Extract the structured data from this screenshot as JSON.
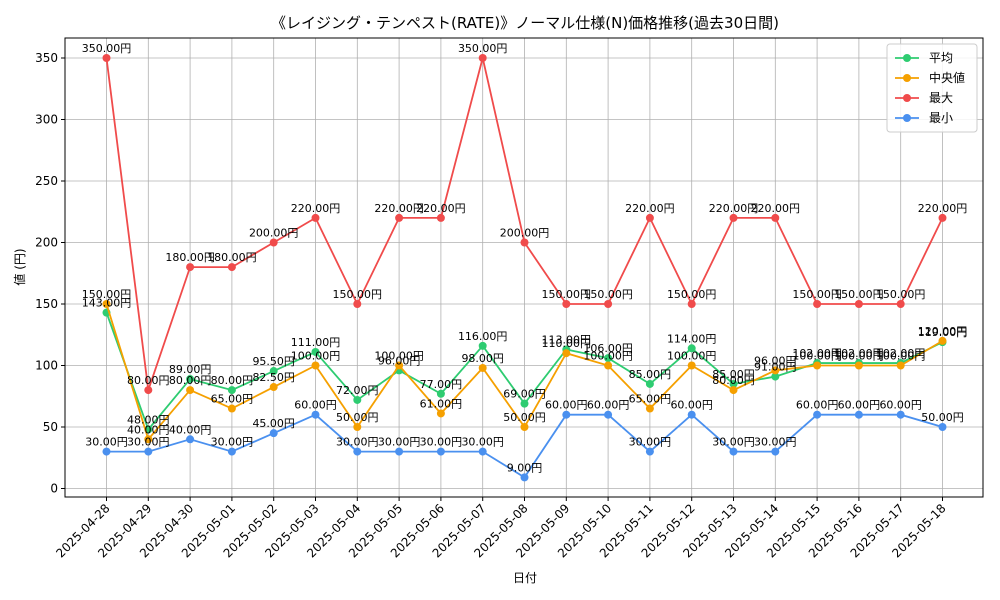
{
  "chart_data": {
    "type": "line",
    "title": "《レイジング・テンペスト(RATE)》ノーマル仕様(N)価格推移(過去30日間)",
    "xlabel": "日付",
    "ylabel": "値 (円)",
    "ylim": [
      0,
      360
    ],
    "yticks": [
      0,
      50,
      100,
      150,
      200,
      250,
      300,
      350
    ],
    "grid": true,
    "legend_position": "top-right",
    "label_suffix": "円",
    "categories": [
      "2025-04-28",
      "2025-04-29",
      "2025-04-30",
      "2025-05-01",
      "2025-05-02",
      "2025-05-03",
      "2025-05-04",
      "2025-05-05",
      "2025-05-06",
      "2025-05-07",
      "2025-05-08",
      "2025-05-09",
      "2025-05-10",
      "2025-05-11",
      "2025-05-12",
      "2025-05-13",
      "2025-05-14",
      "2025-05-15",
      "2025-05-16",
      "2025-05-17",
      "2025-05-18"
    ],
    "series": [
      {
        "name": "平均",
        "color": "#2ecc71",
        "values": [
          143,
          48,
          89,
          80,
          95.5,
          111,
          72,
          96,
          77,
          116,
          69,
          113,
          106,
          85,
          114,
          85,
          91,
          102,
          102,
          102,
          119
        ]
      },
      {
        "name": "中央値",
        "color": "#f5a000",
        "values": [
          150,
          40,
          80,
          65,
          82.5,
          100,
          50,
          100,
          61,
          98,
          50,
          110,
          100,
          65,
          100,
          80,
          96,
          100,
          100,
          100,
          120
        ]
      },
      {
        "name": "最大",
        "color": "#f04b4b",
        "values": [
          350,
          80,
          180,
          180,
          200,
          220,
          150,
          220,
          220,
          350,
          200,
          150,
          150,
          220,
          150,
          220,
          220,
          150,
          150,
          150,
          220
        ]
      },
      {
        "name": "最小",
        "color": "#4a90ef",
        "values": [
          30,
          30,
          40,
          30,
          45,
          60,
          30,
          30,
          30,
          30,
          9,
          60,
          60,
          30,
          60,
          30,
          30,
          60,
          60,
          60,
          50
        ]
      }
    ]
  }
}
